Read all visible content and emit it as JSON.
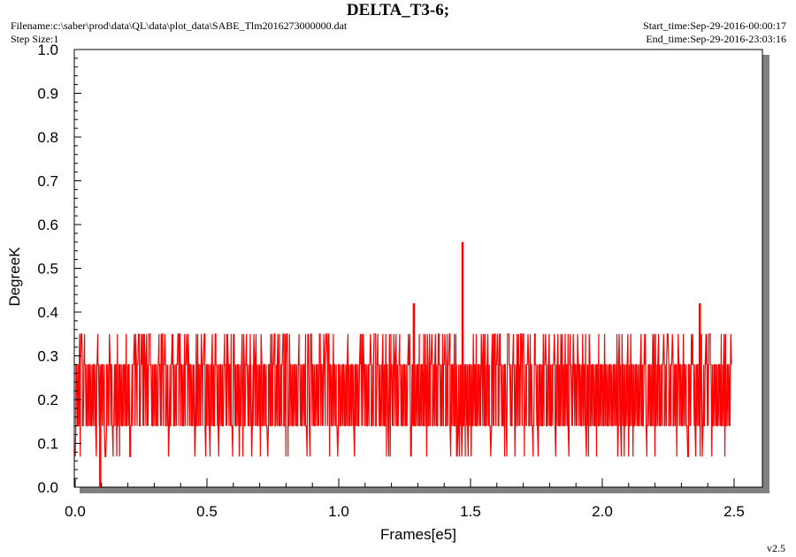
{
  "header": {
    "title": "DELTA_T3-6;",
    "filename": "Filename:c:\\saber\\prod\\data\\QL\\data\\plot_data\\SABE_Tlm2016273000000.dat",
    "step_size": "Step Size:1",
    "start_time": "Start_time:Sep-29-2016-00:00:17",
    "end_time": "End_time:Sep-29-2016-23:03:16",
    "version": "v2.5"
  },
  "colors": {
    "series": "#ff0000",
    "shadow": "#808080",
    "background": "#ffffff"
  },
  "chart_data": {
    "type": "line",
    "title": "DELTA_T3-6;",
    "xlabel": "Frames[e5]",
    "ylabel": "DegreeK",
    "xlim": [
      0.0,
      2.6
    ],
    "ylim": [
      0.0,
      1.0
    ],
    "x_ticks": [
      "0.0",
      "0.5",
      "1.0",
      "1.5",
      "2.0",
      "2.5"
    ],
    "y_ticks": [
      "0.0",
      "0.1",
      "0.2",
      "0.3",
      "0.4",
      "0.5",
      "0.6",
      "0.7",
      "0.8",
      "0.9",
      "1.0"
    ],
    "grid": false,
    "series": [
      {
        "x_range": [
          0.0,
          2.49
        ],
        "band_low": 0.14,
        "band_high": 0.28,
        "upper_excursion": 0.35,
        "lower_excursion": 0.07,
        "spikes": [
          {
            "x": 0.095,
            "y": 0.0
          },
          {
            "x": 1.285,
            "y": 0.42
          },
          {
            "x": 1.47,
            "y": 0.56
          },
          {
            "x": 2.37,
            "y": 0.42
          }
        ]
      }
    ]
  }
}
